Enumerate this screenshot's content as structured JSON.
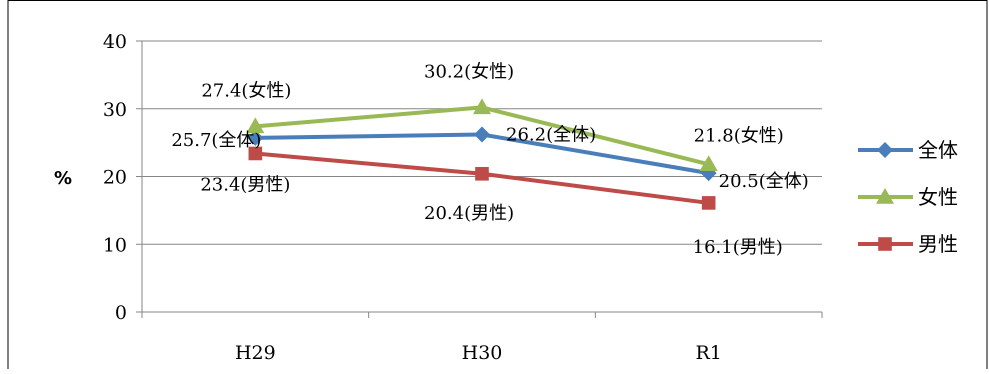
{
  "chart_data": {
    "type": "line",
    "categories": [
      "H29",
      "H30",
      "R1"
    ],
    "ylabel": "%",
    "ylim": [
      0,
      40
    ],
    "yticks": [
      0,
      10,
      20,
      30,
      40
    ],
    "grid": true,
    "legend_position": "right",
    "series": [
      {
        "name": "全体",
        "values": [
          25.7,
          26.2,
          20.5
        ],
        "color": "#4a7ebb",
        "marker": "diamond",
        "labels": [
          "25.7(全体)",
          "26.2(全体)",
          "20.5(全体)"
        ]
      },
      {
        "name": "女性",
        "values": [
          27.4,
          30.2,
          21.8
        ],
        "color": "#98b954",
        "marker": "triangle",
        "labels": [
          "27.4(女性)",
          "30.2(女性)",
          "21.8(女性)"
        ]
      },
      {
        "name": "男性",
        "values": [
          23.4,
          20.4,
          16.1
        ],
        "color": "#be4b48",
        "marker": "square",
        "labels": [
          "23.4(男性)",
          "20.4(男性)",
          "16.1(男性)"
        ]
      }
    ]
  }
}
